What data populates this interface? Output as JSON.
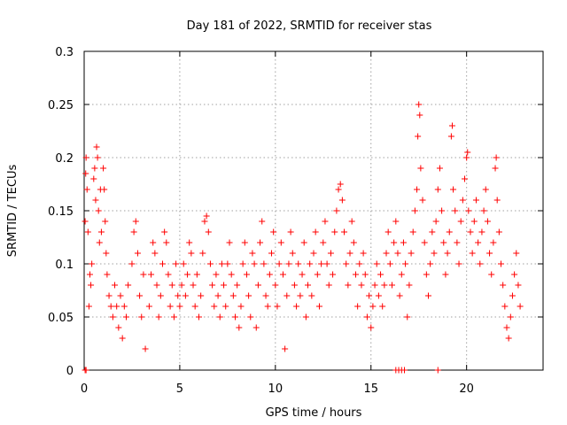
{
  "chart_data": {
    "type": "scatter",
    "title": "Day 181 of 2022, SRMTID for receiver stas",
    "xlabel": "GPS time / hours",
    "ylabel": "SRMTID / TECUs",
    "xlim": [
      0,
      24
    ],
    "ylim": [
      0,
      0.3
    ],
    "x_ticks": [
      0,
      5,
      10,
      15,
      20
    ],
    "x_tick_labels": [
      "0",
      "5",
      "10",
      "15",
      "20"
    ],
    "y_ticks": [
      0,
      0.05,
      0.1,
      0.15,
      0.2,
      0.25,
      0.3
    ],
    "y_tick_labels": [
      "0",
      "0.05",
      "0.1",
      "0.15",
      "0.2",
      "0.25",
      "0.3"
    ],
    "grid": true,
    "marker": "plus",
    "color": "#ff0000",
    "series": [
      {
        "name": "stas",
        "points": [
          [
            0.05,
            0.0
          ],
          [
            0.1,
            0.0
          ],
          [
            16.3,
            0.0
          ],
          [
            16.45,
            0.0
          ],
          [
            16.6,
            0.0
          ],
          [
            16.75,
            0.0
          ],
          [
            18.5,
            0.0
          ],
          [
            0.05,
            0.14
          ],
          [
            0.08,
            0.185
          ],
          [
            0.1,
            0.2
          ],
          [
            0.15,
            0.17
          ],
          [
            0.2,
            0.13
          ],
          [
            0.25,
            0.06
          ],
          [
            0.3,
            0.09
          ],
          [
            0.35,
            0.08
          ],
          [
            0.4,
            0.1
          ],
          [
            0.5,
            0.18
          ],
          [
            0.55,
            0.19
          ],
          [
            0.6,
            0.16
          ],
          [
            0.65,
            0.21
          ],
          [
            0.7,
            0.2
          ],
          [
            0.75,
            0.15
          ],
          [
            0.8,
            0.12
          ],
          [
            0.85,
            0.17
          ],
          [
            0.9,
            0.13
          ],
          [
            1.0,
            0.19
          ],
          [
            1.05,
            0.17
          ],
          [
            1.1,
            0.14
          ],
          [
            1.15,
            0.11
          ],
          [
            1.2,
            0.09
          ],
          [
            1.3,
            0.07
          ],
          [
            1.4,
            0.06
          ],
          [
            1.5,
            0.05
          ],
          [
            1.6,
            0.08
          ],
          [
            1.7,
            0.06
          ],
          [
            1.8,
            0.04
          ],
          [
            1.9,
            0.07
          ],
          [
            2.0,
            0.03
          ],
          [
            2.1,
            0.06
          ],
          [
            2.2,
            0.05
          ],
          [
            2.3,
            0.08
          ],
          [
            2.5,
            0.1
          ],
          [
            2.6,
            0.13
          ],
          [
            2.7,
            0.14
          ],
          [
            2.8,
            0.11
          ],
          [
            2.9,
            0.07
          ],
          [
            3.0,
            0.05
          ],
          [
            3.1,
            0.09
          ],
          [
            3.2,
            0.02
          ],
          [
            3.4,
            0.06
          ],
          [
            3.5,
            0.09
          ],
          [
            3.6,
            0.12
          ],
          [
            3.7,
            0.11
          ],
          [
            3.8,
            0.08
          ],
          [
            3.9,
            0.05
          ],
          [
            4.0,
            0.07
          ],
          [
            4.1,
            0.1
          ],
          [
            4.2,
            0.13
          ],
          [
            4.3,
            0.12
          ],
          [
            4.4,
            0.09
          ],
          [
            4.5,
            0.06
          ],
          [
            4.6,
            0.08
          ],
          [
            4.7,
            0.05
          ],
          [
            4.8,
            0.1
          ],
          [
            4.9,
            0.07
          ],
          [
            5.0,
            0.06
          ],
          [
            5.1,
            0.08
          ],
          [
            5.2,
            0.1
          ],
          [
            5.3,
            0.07
          ],
          [
            5.4,
            0.09
          ],
          [
            5.5,
            0.12
          ],
          [
            5.6,
            0.11
          ],
          [
            5.7,
            0.08
          ],
          [
            5.8,
            0.06
          ],
          [
            5.9,
            0.09
          ],
          [
            6.0,
            0.05
          ],
          [
            6.1,
            0.07
          ],
          [
            6.2,
            0.11
          ],
          [
            6.3,
            0.14
          ],
          [
            6.4,
            0.145
          ],
          [
            6.5,
            0.13
          ],
          [
            6.6,
            0.1
          ],
          [
            6.7,
            0.08
          ],
          [
            6.8,
            0.06
          ],
          [
            6.9,
            0.09
          ],
          [
            7.0,
            0.07
          ],
          [
            7.1,
            0.05
          ],
          [
            7.2,
            0.1
          ],
          [
            7.3,
            0.08
          ],
          [
            7.4,
            0.06
          ],
          [
            7.5,
            0.1
          ],
          [
            7.6,
            0.12
          ],
          [
            7.7,
            0.09
          ],
          [
            7.8,
            0.07
          ],
          [
            7.9,
            0.05
          ],
          [
            8.0,
            0.08
          ],
          [
            8.1,
            0.04
          ],
          [
            8.2,
            0.06
          ],
          [
            8.3,
            0.1
          ],
          [
            8.4,
            0.12
          ],
          [
            8.5,
            0.09
          ],
          [
            8.6,
            0.07
          ],
          [
            8.7,
            0.05
          ],
          [
            8.8,
            0.11
          ],
          [
            8.9,
            0.1
          ],
          [
            9.0,
            0.04
          ],
          [
            9.1,
            0.08
          ],
          [
            9.2,
            0.12
          ],
          [
            9.3,
            0.14
          ],
          [
            9.4,
            0.1
          ],
          [
            9.5,
            0.07
          ],
          [
            9.6,
            0.06
          ],
          [
            9.7,
            0.09
          ],
          [
            9.8,
            0.11
          ],
          [
            9.9,
            0.13
          ],
          [
            10.0,
            0.08
          ],
          [
            10.1,
            0.06
          ],
          [
            10.2,
            0.1
          ],
          [
            10.3,
            0.12
          ],
          [
            10.4,
            0.09
          ],
          [
            10.5,
            0.02
          ],
          [
            10.6,
            0.07
          ],
          [
            10.7,
            0.1
          ],
          [
            10.8,
            0.13
          ],
          [
            10.9,
            0.11
          ],
          [
            11.0,
            0.08
          ],
          [
            11.1,
            0.06
          ],
          [
            11.2,
            0.1
          ],
          [
            11.3,
            0.07
          ],
          [
            11.4,
            0.09
          ],
          [
            11.5,
            0.12
          ],
          [
            11.6,
            0.05
          ],
          [
            11.7,
            0.08
          ],
          [
            11.8,
            0.1
          ],
          [
            11.9,
            0.07
          ],
          [
            12.0,
            0.11
          ],
          [
            12.1,
            0.13
          ],
          [
            12.2,
            0.09
          ],
          [
            12.3,
            0.06
          ],
          [
            12.4,
            0.1
          ],
          [
            12.5,
            0.12
          ],
          [
            12.6,
            0.14
          ],
          [
            12.7,
            0.1
          ],
          [
            12.8,
            0.08
          ],
          [
            12.9,
            0.11
          ],
          [
            13.0,
            0.09
          ],
          [
            13.1,
            0.13
          ],
          [
            13.2,
            0.15
          ],
          [
            13.3,
            0.17
          ],
          [
            13.4,
            0.175
          ],
          [
            13.5,
            0.16
          ],
          [
            13.6,
            0.13
          ],
          [
            13.7,
            0.1
          ],
          [
            13.8,
            0.08
          ],
          [
            13.9,
            0.11
          ],
          [
            14.0,
            0.14
          ],
          [
            14.1,
            0.12
          ],
          [
            14.2,
            0.09
          ],
          [
            14.3,
            0.06
          ],
          [
            14.4,
            0.1
          ],
          [
            14.5,
            0.08
          ],
          [
            14.6,
            0.11
          ],
          [
            14.7,
            0.09
          ],
          [
            14.8,
            0.05
          ],
          [
            14.9,
            0.07
          ],
          [
            15.0,
            0.04
          ],
          [
            15.1,
            0.06
          ],
          [
            15.2,
            0.08
          ],
          [
            15.3,
            0.1
          ],
          [
            15.4,
            0.07
          ],
          [
            15.5,
            0.09
          ],
          [
            15.6,
            0.06
          ],
          [
            15.7,
            0.08
          ],
          [
            15.8,
            0.11
          ],
          [
            15.9,
            0.13
          ],
          [
            16.0,
            0.1
          ],
          [
            16.1,
            0.08
          ],
          [
            16.2,
            0.12
          ],
          [
            16.3,
            0.14
          ],
          [
            16.4,
            0.11
          ],
          [
            16.5,
            0.07
          ],
          [
            16.6,
            0.09
          ],
          [
            16.7,
            0.12
          ],
          [
            16.8,
            0.1
          ],
          [
            16.9,
            0.05
          ],
          [
            17.0,
            0.08
          ],
          [
            17.1,
            0.11
          ],
          [
            17.2,
            0.13
          ],
          [
            17.3,
            0.15
          ],
          [
            17.4,
            0.17
          ],
          [
            17.45,
            0.22
          ],
          [
            17.5,
            0.25
          ],
          [
            17.55,
            0.24
          ],
          [
            17.6,
            0.19
          ],
          [
            17.7,
            0.16
          ],
          [
            17.8,
            0.12
          ],
          [
            17.9,
            0.09
          ],
          [
            18.0,
            0.07
          ],
          [
            18.1,
            0.1
          ],
          [
            18.2,
            0.13
          ],
          [
            18.3,
            0.11
          ],
          [
            18.4,
            0.14
          ],
          [
            18.5,
            0.17
          ],
          [
            18.6,
            0.19
          ],
          [
            18.7,
            0.15
          ],
          [
            18.8,
            0.12
          ],
          [
            18.9,
            0.09
          ],
          [
            19.0,
            0.11
          ],
          [
            19.1,
            0.13
          ],
          [
            19.2,
            0.22
          ],
          [
            19.25,
            0.23
          ],
          [
            19.3,
            0.17
          ],
          [
            19.4,
            0.15
          ],
          [
            19.5,
            0.12
          ],
          [
            19.6,
            0.1
          ],
          [
            19.7,
            0.14
          ],
          [
            19.8,
            0.16
          ],
          [
            19.9,
            0.18
          ],
          [
            20.0,
            0.2
          ],
          [
            20.05,
            0.205
          ],
          [
            20.1,
            0.15
          ],
          [
            20.2,
            0.13
          ],
          [
            20.3,
            0.11
          ],
          [
            20.4,
            0.14
          ],
          [
            20.5,
            0.16
          ],
          [
            20.6,
            0.12
          ],
          [
            20.7,
            0.1
          ],
          [
            20.8,
            0.13
          ],
          [
            20.9,
            0.15
          ],
          [
            21.0,
            0.17
          ],
          [
            21.1,
            0.14
          ],
          [
            21.2,
            0.11
          ],
          [
            21.3,
            0.09
          ],
          [
            21.4,
            0.12
          ],
          [
            21.5,
            0.19
          ],
          [
            21.55,
            0.2
          ],
          [
            21.6,
            0.16
          ],
          [
            21.7,
            0.13
          ],
          [
            21.8,
            0.1
          ],
          [
            21.9,
            0.08
          ],
          [
            22.0,
            0.06
          ],
          [
            22.1,
            0.04
          ],
          [
            22.2,
            0.03
          ],
          [
            22.3,
            0.05
          ],
          [
            22.4,
            0.07
          ],
          [
            22.5,
            0.09
          ],
          [
            22.6,
            0.11
          ],
          [
            22.7,
            0.08
          ],
          [
            22.8,
            0.06
          ]
        ]
      }
    ]
  }
}
